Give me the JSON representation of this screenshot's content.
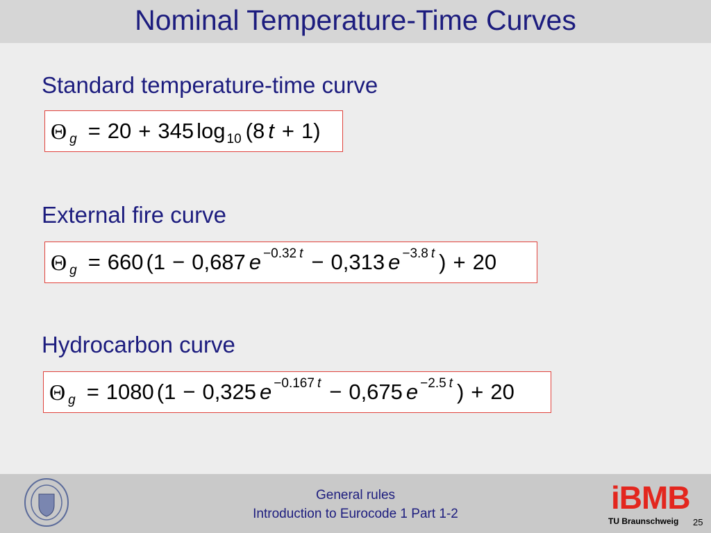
{
  "header": {
    "title": "Nominal Temperature-Time Curves"
  },
  "sections": [
    {
      "heading": "Standard temperature-time curve",
      "equation": [
        {
          "text": "Θ",
          "style": "symbol"
        },
        {
          "text": "g",
          "style": "sub-italic"
        },
        {
          "text": "=",
          "style": "op"
        },
        {
          "text": "20",
          "style": "normal"
        },
        {
          "text": "+",
          "style": "op"
        },
        {
          "text": "345",
          "style": "normal"
        },
        {
          "text": "log",
          "style": "normal"
        },
        {
          "text": "10",
          "style": "sub"
        },
        {
          "text": "(8",
          "style": "normal"
        },
        {
          "text": "t",
          "style": "italic"
        },
        {
          "text": "+",
          "style": "op"
        },
        {
          "text": "1)",
          "style": "normal"
        }
      ]
    },
    {
      "heading": "External fire curve",
      "equation": [
        {
          "text": "Θ",
          "style": "symbol"
        },
        {
          "text": "g",
          "style": "sub-italic"
        },
        {
          "text": "=",
          "style": "op"
        },
        {
          "text": "660",
          "style": "normal"
        },
        {
          "text": "(1",
          "style": "normal"
        },
        {
          "text": "−",
          "style": "op"
        },
        {
          "text": "0,687",
          "style": "normal"
        },
        {
          "text": "e",
          "style": "italic"
        },
        {
          "text": "−0.32",
          "style": "sup"
        },
        {
          "text": "t",
          "style": "sup-italic"
        },
        {
          "text": "−",
          "style": "op"
        },
        {
          "text": "0,313",
          "style": "normal"
        },
        {
          "text": "e",
          "style": "italic"
        },
        {
          "text": "−3.8",
          "style": "sup"
        },
        {
          "text": "t",
          "style": "sup-italic"
        },
        {
          "text": ")",
          "style": "normal"
        },
        {
          "text": "+",
          "style": "op"
        },
        {
          "text": "20",
          "style": "normal"
        }
      ]
    },
    {
      "heading": "Hydrocarbon curve",
      "equation": [
        {
          "text": "Θ",
          "style": "symbol"
        },
        {
          "text": "g",
          "style": "sub-italic"
        },
        {
          "text": "=",
          "style": "op"
        },
        {
          "text": "1080",
          "style": "normal"
        },
        {
          "text": "(1",
          "style": "normal"
        },
        {
          "text": "−",
          "style": "op"
        },
        {
          "text": "0,325",
          "style": "normal"
        },
        {
          "text": "e",
          "style": "italic"
        },
        {
          "text": "−0.167",
          "style": "sup"
        },
        {
          "text": "t",
          "style": "sup-italic"
        },
        {
          "text": "−",
          "style": "op"
        },
        {
          "text": "0,675",
          "style": "normal"
        },
        {
          "text": "e",
          "style": "italic"
        },
        {
          "text": "−2.5",
          "style": "sup"
        },
        {
          "text": "t",
          "style": "sup-italic"
        },
        {
          "text": ")",
          "style": "normal"
        },
        {
          "text": "+",
          "style": "op"
        },
        {
          "text": "20",
          "style": "normal"
        }
      ]
    }
  ],
  "footer": {
    "lines": [
      "General rules",
      "Introduction to Eurocode 1 Part 1-2"
    ],
    "logo": "iBMB",
    "institution": "TU Braunschweig",
    "page": "25"
  }
}
